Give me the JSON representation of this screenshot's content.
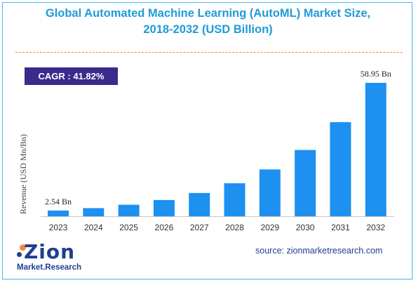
{
  "title_line1": "Global Automated Machine Learning (AutoML) Market Size,",
  "title_line2": "2018-2032 (USD Billion)",
  "cagr": "CAGR : 41.82%",
  "source": "source: zionmarketresearch.com",
  "logo": {
    "main": "Zion",
    "sub": "Market.Research"
  },
  "colors": {
    "bar": "#1e90f0",
    "title": "#1f9bd7",
    "cagr_bg": "#3b2a8c",
    "divider": "#f08a3c"
  },
  "chart_data": {
    "type": "bar",
    "categories": [
      "2023",
      "2024",
      "2025",
      "2026",
      "2027",
      "2028",
      "2029",
      "2030",
      "2031",
      "2032"
    ],
    "values": [
      2.54,
      3.6,
      5.1,
      7.2,
      10.3,
      14.6,
      20.7,
      29.3,
      41.6,
      58.95
    ],
    "ylabel": "Revenue (USD Mn/Bn)",
    "ylim": [
      0,
      58.95
    ],
    "data_labels": [
      {
        "index": 0,
        "text": "2.54 Bn"
      },
      {
        "index": 9,
        "text": "58.95 Bn"
      }
    ],
    "grid": false,
    "legend": "none"
  }
}
